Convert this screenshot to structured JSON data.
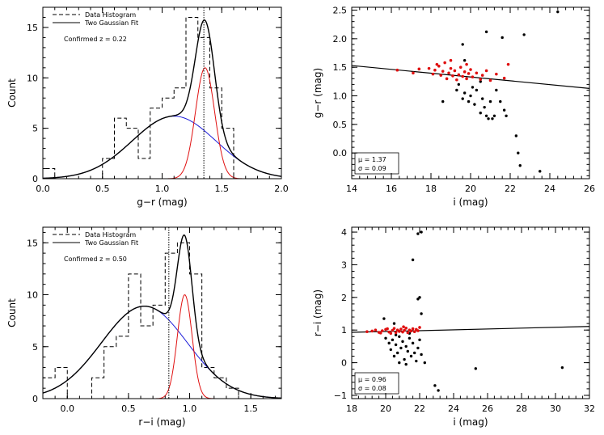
{
  "chart_data": [
    {
      "id": "tl",
      "type": "histogram",
      "xlabel": "g−r (mag)",
      "ylabel": "Count",
      "xlim": [
        0,
        2
      ],
      "ylim": [
        0,
        17
      ],
      "xticks": [
        0,
        0.5,
        1,
        1.5,
        2
      ],
      "xtick_labels": [
        "0.0",
        "0.5",
        "1.0",
        "1.5",
        "2.0"
      ],
      "yticks": [
        0,
        5,
        10,
        15
      ],
      "ytick_labels": [
        "0",
        "5",
        "10",
        "15"
      ],
      "legend": [
        "Data Histogram",
        "Two Gaussian Fit"
      ],
      "annotation": "Confirmed z =   0.22",
      "vline": 1.35,
      "bin_width": 0.1,
      "bins": [
        0.05,
        0.15,
        0.25,
        0.35,
        0.45,
        0.55,
        0.65,
        0.75,
        0.85,
        0.95,
        1.05,
        1.15,
        1.25,
        1.35,
        1.45,
        1.55,
        1.65,
        1.75,
        1.85,
        1.95
      ],
      "counts": [
        1,
        0,
        0,
        0,
        0,
        2,
        6,
        5,
        2,
        7,
        8,
        9,
        16,
        14,
        9,
        5,
        0,
        0,
        0,
        0
      ],
      "gauss_broad": {
        "amp": 6.2,
        "mu": 1.1,
        "sigma": 0.35
      },
      "gauss_narrow": {
        "amp": 11.0,
        "mu": 1.36,
        "sigma": 0.08
      }
    },
    {
      "id": "tr",
      "type": "scatter",
      "xlabel": "i (mag)",
      "ylabel": "g−r (mag)",
      "xlim": [
        14,
        26
      ],
      "ylim": [
        -0.45,
        2.55
      ],
      "xticks": [
        14,
        16,
        18,
        20,
        22,
        24,
        26
      ],
      "xtick_labels": [
        "14",
        "16",
        "18",
        "20",
        "22",
        "24",
        "26"
      ],
      "yticks": [
        0,
        0.5,
        1,
        1.5,
        2,
        2.5
      ],
      "ytick_labels": [
        "0.0",
        "0.5",
        "1.0",
        "1.5",
        "2.0",
        "2.5"
      ],
      "fit_line": [
        [
          14,
          1.53
        ],
        [
          26,
          1.13
        ]
      ],
      "stats_text": [
        "μ   =   1.37",
        "σ   =   0.09"
      ],
      "red_points": [
        [
          16.3,
          1.45
        ],
        [
          17.1,
          1.4
        ],
        [
          17.4,
          1.47
        ],
        [
          17.9,
          1.48
        ],
        [
          18.1,
          1.38
        ],
        [
          18.2,
          1.45
        ],
        [
          18.4,
          1.52
        ],
        [
          18.5,
          1.36
        ],
        [
          18.6,
          1.43
        ],
        [
          18.7,
          1.58
        ],
        [
          18.8,
          1.3
        ],
        [
          18.9,
          1.4
        ],
        [
          19.0,
          1.48
        ],
        [
          19.1,
          1.35
        ],
        [
          19.2,
          1.44
        ],
        [
          19.3,
          1.28
        ],
        [
          19.4,
          1.37
        ],
        [
          19.5,
          1.5
        ],
        [
          19.6,
          1.34
        ],
        [
          19.7,
          1.42
        ],
        [
          19.8,
          1.3
        ],
        [
          19.9,
          1.39
        ],
        [
          20.0,
          1.46
        ],
        [
          20.1,
          1.33
        ],
        [
          20.3,
          1.4
        ],
        [
          20.5,
          1.29
        ],
        [
          20.6,
          1.36
        ],
        [
          20.8,
          1.44
        ],
        [
          21.0,
          1.27
        ],
        [
          21.3,
          1.38
        ],
        [
          21.7,
          1.31
        ],
        [
          21.9,
          1.55
        ],
        [
          19.0,
          1.62
        ],
        [
          18.3,
          1.55
        ],
        [
          19.8,
          1.55
        ]
      ],
      "black_points": [
        [
          18.6,
          0.9
        ],
        [
          19.3,
          1.1
        ],
        [
          19.4,
          1.2
        ],
        [
          19.6,
          0.95
        ],
        [
          19.7,
          1.05
        ],
        [
          19.9,
          0.9
        ],
        [
          20.0,
          1.0
        ],
        [
          20.1,
          1.15
        ],
        [
          20.2,
          0.85
        ],
        [
          20.3,
          1.1
        ],
        [
          20.5,
          0.7
        ],
        [
          20.6,
          0.95
        ],
        [
          20.7,
          0.8
        ],
        [
          20.8,
          0.65
        ],
        [
          20.9,
          0.6
        ],
        [
          21.0,
          0.9
        ],
        [
          21.1,
          0.6
        ],
        [
          21.2,
          0.65
        ],
        [
          21.3,
          1.1
        ],
        [
          21.5,
          0.9
        ],
        [
          21.7,
          0.75
        ],
        [
          21.8,
          0.65
        ],
        [
          20.8,
          2.12
        ],
        [
          21.6,
          2.02
        ],
        [
          22.7,
          2.07
        ],
        [
          19.6,
          1.9
        ],
        [
          19.7,
          1.62
        ],
        [
          20.5,
          1.25
        ],
        [
          22.3,
          0.3
        ],
        [
          22.4,
          0.0
        ],
        [
          22.5,
          -0.22
        ],
        [
          23.5,
          -0.32
        ],
        [
          24.4,
          2.47
        ]
      ]
    },
    {
      "id": "bl",
      "type": "histogram",
      "xlabel": "r−i (mag)",
      "ylabel": "Count",
      "xlim": [
        -0.2,
        1.75
      ],
      "ylim": [
        0,
        16.5
      ],
      "xticks": [
        0,
        0.5,
        1,
        1.5
      ],
      "xtick_labels": [
        "0.0",
        "0.5",
        "1.0",
        "1.5"
      ],
      "yticks": [
        0,
        5,
        10,
        15
      ],
      "ytick_labels": [
        "0",
        "5",
        "10",
        "15"
      ],
      "legend": [
        "Data Histogram",
        "Two Gaussian Fit"
      ],
      "annotation": "Confirmed z =   0.50",
      "vline": 0.83,
      "bin_width": 0.1,
      "bins": [
        -0.15,
        -0.05,
        0.05,
        0.15,
        0.25,
        0.35,
        0.45,
        0.55,
        0.65,
        0.75,
        0.85,
        0.95,
        1.05,
        1.15,
        1.25,
        1.35,
        1.45
      ],
      "counts": [
        2,
        3,
        0,
        0,
        2,
        5,
        6,
        12,
        7,
        9,
        14,
        15,
        12,
        3,
        2,
        1,
        0
      ],
      "gauss_broad": {
        "amp": 8.9,
        "mu": 0.63,
        "sigma": 0.35
      },
      "gauss_narrow": {
        "amp": 10.0,
        "mu": 0.96,
        "sigma": 0.06
      }
    },
    {
      "id": "br",
      "type": "scatter",
      "xlabel": "i (mag)",
      "ylabel": "r−i (mag)",
      "xlim": [
        18,
        32
      ],
      "ylim": [
        -1.1,
        4.15
      ],
      "xticks": [
        18,
        20,
        22,
        24,
        26,
        28,
        30,
        32
      ],
      "xtick_labels": [
        "18",
        "20",
        "22",
        "24",
        "26",
        "28",
        "30",
        "32"
      ],
      "yticks": [
        -1,
        0,
        1,
        2,
        3,
        4
      ],
      "ytick_labels": [
        "−1",
        "0",
        "1",
        "2",
        "3",
        "4"
      ],
      "fit_line": [
        [
          18,
          0.93
        ],
        [
          32,
          1.11
        ]
      ],
      "stats_text": [
        "μ   =   0.96",
        "σ   =   0.08"
      ],
      "red_points": [
        [
          18.9,
          0.95
        ],
        [
          19.2,
          0.97
        ],
        [
          19.4,
          1.0
        ],
        [
          19.6,
          0.93
        ],
        [
          19.8,
          0.98
        ],
        [
          20.0,
          1.02
        ],
        [
          20.2,
          0.94
        ],
        [
          20.4,
          0.99
        ],
        [
          20.5,
          1.05
        ],
        [
          20.6,
          0.92
        ],
        [
          20.7,
          1.0
        ],
        [
          20.8,
          0.96
        ],
        [
          20.9,
          1.03
        ],
        [
          21.0,
          0.94
        ],
        [
          21.1,
          0.99
        ],
        [
          21.2,
          1.06
        ],
        [
          21.3,
          0.92
        ],
        [
          21.4,
          1.0
        ],
        [
          21.5,
          0.97
        ],
        [
          21.6,
          1.04
        ],
        [
          21.7,
          0.95
        ],
        [
          21.8,
          1.02
        ],
        [
          21.9,
          0.98
        ],
        [
          22.0,
          1.08
        ],
        [
          20.3,
          0.9
        ],
        [
          20.1,
          1.04
        ],
        [
          21.05,
          1.1
        ],
        [
          19.7,
          0.91
        ]
      ],
      "black_points": [
        [
          19.9,
          1.35
        ],
        [
          20.2,
          0.6
        ],
        [
          20.3,
          0.4
        ],
        [
          20.4,
          0.7
        ],
        [
          20.5,
          0.2
        ],
        [
          20.6,
          0.55
        ],
        [
          20.7,
          0.3
        ],
        [
          20.8,
          0.8
        ],
        [
          20.9,
          0.45
        ],
        [
          21.0,
          0.65
        ],
        [
          21.1,
          0.1
        ],
        [
          21.2,
          0.5
        ],
        [
          21.3,
          0.35
        ],
        [
          21.4,
          0.75
        ],
        [
          21.5,
          0.2
        ],
        [
          21.6,
          0.6
        ],
        [
          21.7,
          0.3
        ],
        [
          21.8,
          0.05
        ],
        [
          21.9,
          0.45
        ],
        [
          22.0,
          0.7
        ],
        [
          22.1,
          0.25
        ],
        [
          20.5,
          1.2
        ],
        [
          21.9,
          1.95
        ],
        [
          22.0,
          2.0
        ],
        [
          22.1,
          1.5
        ],
        [
          21.6,
          3.15
        ],
        [
          21.9,
          3.95
        ],
        [
          22.1,
          4.0
        ],
        [
          22.9,
          -0.7
        ],
        [
          23.1,
          -0.85
        ],
        [
          25.3,
          -0.18
        ],
        [
          30.4,
          -0.15
        ],
        [
          20.8,
          0.0
        ],
        [
          21.2,
          -0.05
        ],
        [
          22.3,
          0.0
        ],
        [
          20.0,
          0.75
        ],
        [
          21.4,
          0.9
        ],
        [
          20.6,
          0.85
        ]
      ]
    }
  ]
}
